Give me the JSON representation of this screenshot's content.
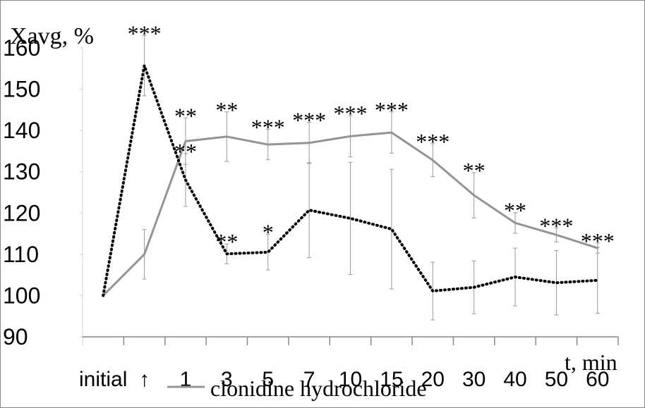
{
  "chart_data": {
    "type": "line",
    "y_label": "Xavg, %",
    "x_label": "t, min",
    "categories": [
      "initial",
      "↑",
      "1",
      "3",
      "5",
      "7",
      "10",
      "15",
      "20",
      "30",
      "40",
      "50",
      "60"
    ],
    "ylim": [
      90,
      160
    ],
    "yticks": [
      90,
      100,
      110,
      120,
      130,
      140,
      150,
      160
    ],
    "series": [
      {
        "name": "clonidine hydrochloride",
        "color": "#949494",
        "dash": "solid",
        "values": [
          100,
          110,
          137.4,
          138.5,
          136.6,
          137,
          138.6,
          139.5,
          132.8,
          124.3,
          117.6,
          114.7,
          111.5
        ],
        "errors": [
          null,
          6,
          5.6,
          6,
          3.7,
          5,
          5,
          5,
          4,
          5.5,
          2.5,
          1.7,
          1.2
        ],
        "significance": [
          null,
          null,
          "**",
          "**",
          "***",
          "***",
          "***",
          "***",
          "***",
          "**",
          "**",
          "***",
          "***"
        ]
      },
      {
        "color": "#000000",
        "dash": "dotted",
        "values": [
          100,
          155.7,
          128,
          110.1,
          110.5,
          120.7,
          118.7,
          116.1,
          101.1,
          102,
          104.5,
          103.1,
          103.7
        ],
        "errors": [
          null,
          7.3,
          6.4,
          2.4,
          4.3,
          11.5,
          13.6,
          14.5,
          7,
          6.4,
          7,
          7.8,
          8
        ],
        "significance": [
          null,
          "***",
          "**",
          "**",
          "*",
          null,
          null,
          null,
          null,
          null,
          null,
          null,
          null
        ]
      }
    ]
  }
}
